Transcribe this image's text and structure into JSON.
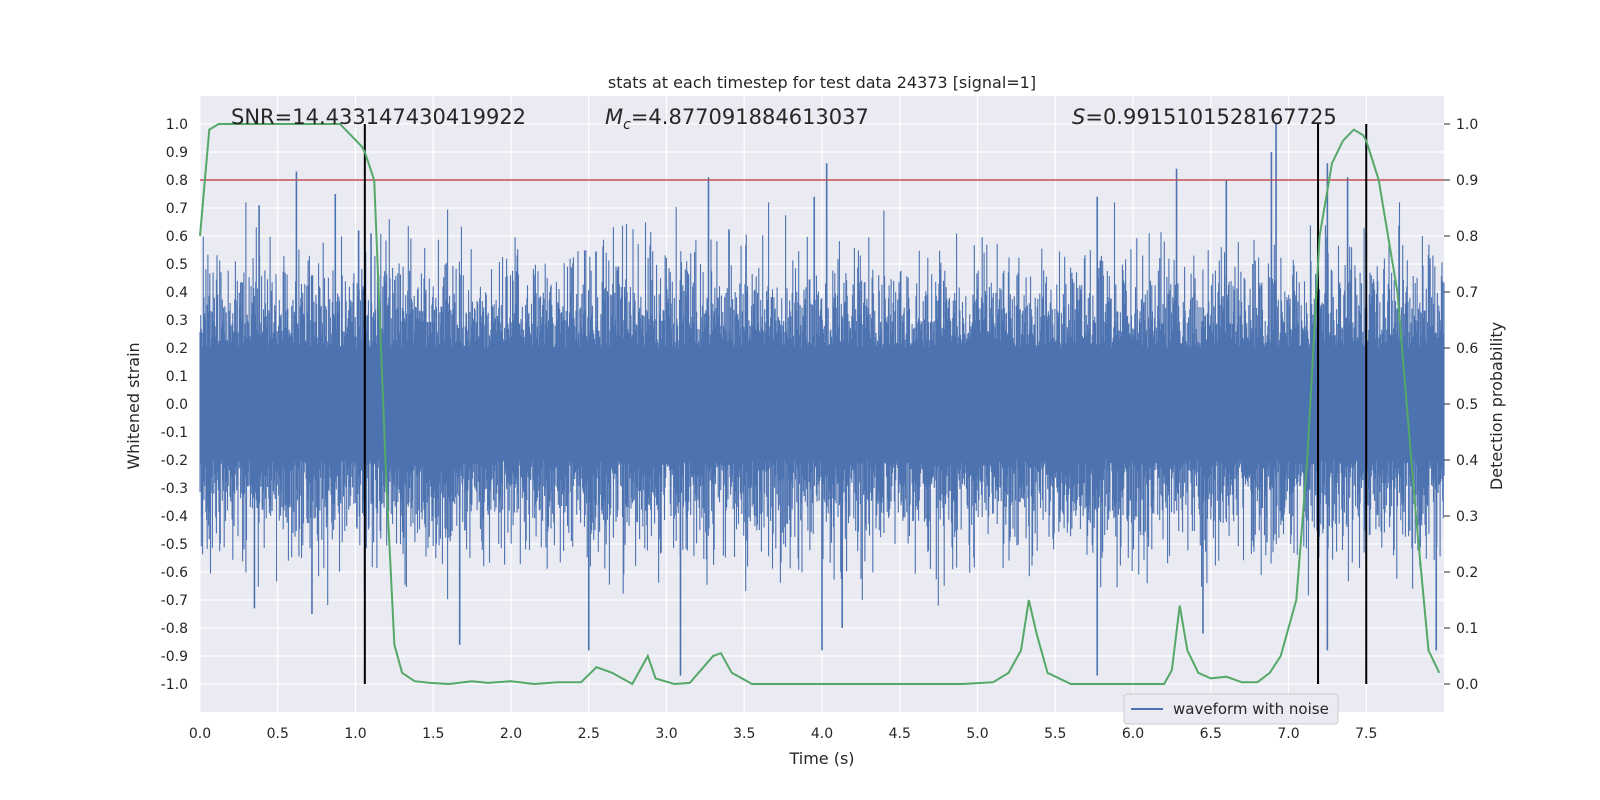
{
  "chart_data": {
    "type": "line",
    "title": "stats at each timestep for test data 24373 [signal=1]",
    "xlabel": "Time (s)",
    "ylabel_left": "Whitened strain",
    "ylabel_right": "Detection probability",
    "xlim": [
      0,
      8
    ],
    "ylim_left": [
      -1.1,
      1.1
    ],
    "ylim_right": [
      -0.05,
      1.05
    ],
    "xticks": [
      "0.0",
      "0.5",
      "1.0",
      "1.5",
      "2.0",
      "2.5",
      "3.0",
      "3.5",
      "4.0",
      "4.5",
      "5.0",
      "5.5",
      "6.0",
      "6.5",
      "7.0",
      "7.5"
    ],
    "yticks_left": [
      "1.0",
      "0.9",
      "0.8",
      "0.7",
      "0.6",
      "0.5",
      "0.4",
      "0.3",
      "0.2",
      "0.1",
      "0.0",
      "-0.1",
      "-0.2",
      "-0.3",
      "-0.4",
      "-0.5",
      "-0.6",
      "-0.7",
      "-0.8",
      "-0.9",
      "-1.0"
    ],
    "yticks_right": [
      "1.0",
      "0.9",
      "0.8",
      "0.7",
      "0.6",
      "0.5",
      "0.4",
      "0.3",
      "0.2",
      "0.1",
      "0.0"
    ],
    "annotations": {
      "snr": "SNR=14.433147430419922",
      "mc": "=4.877091884613037",
      "mc_symbol": "M",
      "mc_sub": "c",
      "s": "=0.9915101528167725",
      "s_symbol": "S"
    },
    "legend": {
      "label": "waveform with noise",
      "placement": "bottom-right"
    },
    "threshold": {
      "axis": "right",
      "value": 0.9,
      "color": "#c44e52"
    },
    "vlines": [
      1.06,
      7.19,
      7.5
    ],
    "waveform": {
      "name": "waveform with noise",
      "color": "#4c72b0",
      "t_range": [
        0,
        8
      ],
      "core_amplitude": 0.2,
      "typical_amplitude": 0.4,
      "peaks": [
        {
          "t": 0.62,
          "y": 0.83
        },
        {
          "t": 0.87,
          "y": 0.75
        },
        {
          "t": 0.38,
          "y": 0.71
        },
        {
          "t": 1.02,
          "y": 0.62
        },
        {
          "t": 1.1,
          "y": 0.61
        },
        {
          "t": 3.27,
          "y": 0.81
        },
        {
          "t": 4.03,
          "y": 0.86
        },
        {
          "t": 3.95,
          "y": 0.74
        },
        {
          "t": 5.77,
          "y": 0.74
        },
        {
          "t": 6.28,
          "y": 0.84
        },
        {
          "t": 6.6,
          "y": 0.8
        },
        {
          "t": 6.92,
          "y": 1.0
        },
        {
          "t": 6.89,
          "y": 0.9
        },
        {
          "t": 7.25,
          "y": 0.86
        },
        {
          "t": 7.38,
          "y": 0.81
        },
        {
          "t": 0.35,
          "y": -0.73
        },
        {
          "t": 0.72,
          "y": -0.75
        },
        {
          "t": 1.67,
          "y": -0.86
        },
        {
          "t": 2.5,
          "y": -0.88
        },
        {
          "t": 3.09,
          "y": -0.97
        },
        {
          "t": 4.0,
          "y": -0.88
        },
        {
          "t": 4.13,
          "y": -0.8
        },
        {
          "t": 5.77,
          "y": -0.97
        },
        {
          "t": 6.45,
          "y": -0.82
        },
        {
          "t": 7.25,
          "y": -0.88
        },
        {
          "t": 7.95,
          "y": -0.88
        }
      ]
    },
    "probability": {
      "color": "#55a868",
      "t": [
        0.0,
        0.06,
        0.12,
        0.2,
        0.3,
        0.5,
        0.7,
        0.9,
        0.97,
        1.04,
        1.06,
        1.12,
        1.2,
        1.25,
        1.3,
        1.38,
        1.48,
        1.6,
        1.75,
        1.85,
        2.0,
        2.15,
        2.3,
        2.45,
        2.55,
        2.65,
        2.78,
        2.88,
        2.93,
        3.05,
        3.15,
        3.3,
        3.35,
        3.42,
        3.55,
        3.7,
        3.9,
        4.1,
        4.3,
        4.6,
        4.9,
        5.1,
        5.2,
        5.28,
        5.33,
        5.38,
        5.45,
        5.6,
        5.75,
        5.9,
        6.05,
        6.2,
        6.25,
        6.3,
        6.35,
        6.42,
        6.5,
        6.6,
        6.7,
        6.8,
        6.88,
        6.95,
        7.05,
        7.12,
        7.2,
        7.28,
        7.35,
        7.42,
        7.48,
        7.5,
        7.58,
        7.7,
        7.82,
        7.9,
        7.97
      ],
      "values": [
        0.8,
        0.99,
        1.0,
        1.0,
        1.0,
        1.0,
        1.0,
        1.0,
        0.98,
        0.96,
        0.95,
        0.9,
        0.35,
        0.07,
        0.02,
        0.005,
        0.002,
        0.0,
        0.005,
        0.002,
        0.005,
        0.0,
        0.003,
        0.003,
        0.03,
        0.02,
        0.0,
        0.05,
        0.01,
        0.0,
        0.002,
        0.05,
        0.055,
        0.02,
        0.0,
        0.0,
        0.0,
        0.0,
        0.0,
        0.0,
        0.0,
        0.003,
        0.02,
        0.06,
        0.15,
        0.09,
        0.02,
        0.0,
        0.0,
        0.0,
        0.0,
        0.0,
        0.025,
        0.14,
        0.06,
        0.02,
        0.01,
        0.013,
        0.003,
        0.003,
        0.02,
        0.05,
        0.15,
        0.4,
        0.8,
        0.93,
        0.97,
        0.99,
        0.98,
        0.97,
        0.9,
        0.7,
        0.3,
        0.06,
        0.02
      ]
    }
  }
}
